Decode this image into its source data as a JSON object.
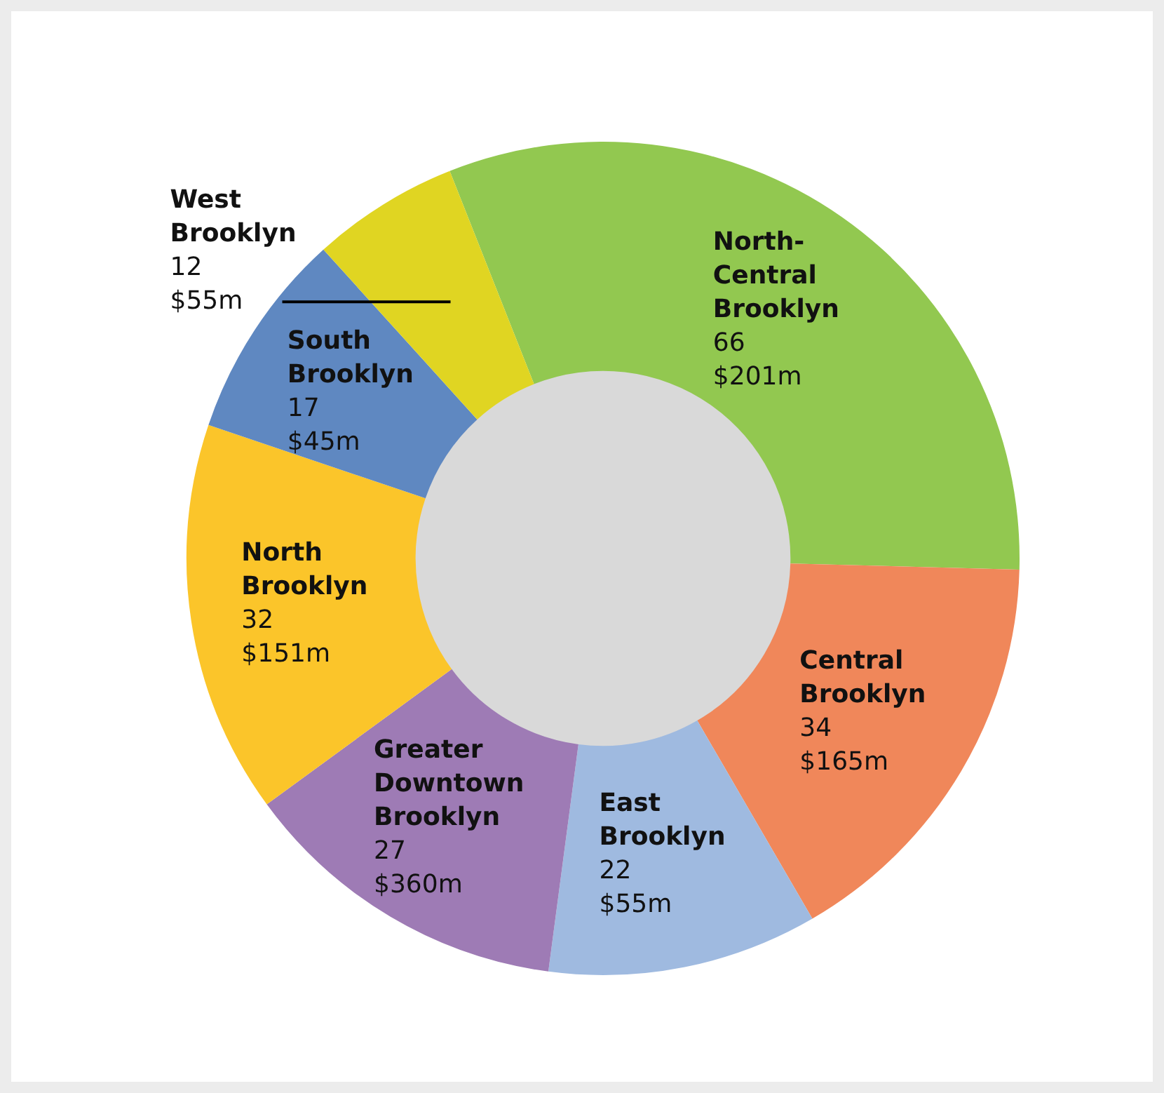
{
  "chart_data": {
    "type": "donut",
    "categories": [
      "North-Central Brooklyn",
      "Central Brooklyn",
      "East Brooklyn",
      "Greater Downtown Brooklyn",
      "North Brooklyn",
      "South Brooklyn",
      "West Brooklyn"
    ],
    "values": [
      66,
      34,
      22,
      27,
      32,
      17,
      12
    ],
    "value_labels": [
      "66\n$201m",
      "34\n$165m",
      "22\n$55m",
      "27\n$360m",
      "32\n$151m",
      "17\n$45m",
      "12\n$55m"
    ],
    "colors": [
      "#92c850",
      "#f0875a",
      "#9fbae0",
      "#9e7bb5",
      "#fbc52a",
      "#5f88c1",
      "#e0d522"
    ],
    "legend": false
  }
}
